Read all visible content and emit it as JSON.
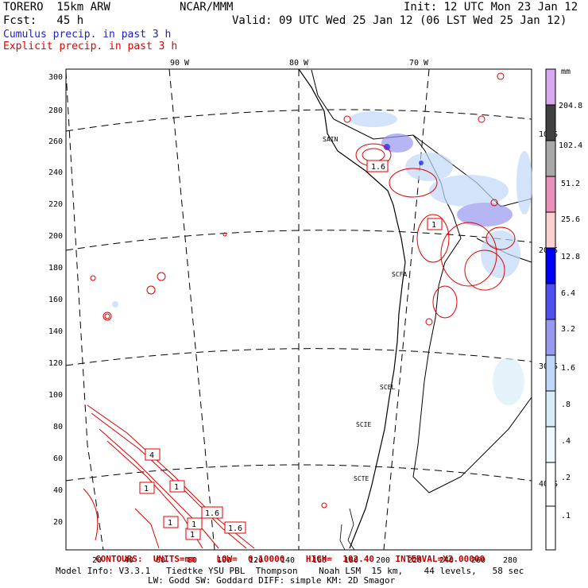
{
  "header": {
    "model": "TORERO  15km ARW",
    "center": "NCAR/MMM",
    "init": "Init: 12 UTC Mon 23 Jan 12",
    "fcst": "Fcst:   45 h",
    "valid": "Valid: 09 UTC Wed 25 Jan 12 (06 LST Wed 25 Jan 12)"
  },
  "fields": {
    "cumulus": "Cumulus precip. in past 3 h",
    "explicit": "Explicit precip. in past 3 h"
  },
  "axes": {
    "y_ticks": [
      "300",
      "280",
      "260",
      "240",
      "220",
      "200",
      "180",
      "160",
      "140",
      "120",
      "100",
      "80",
      "60",
      "40",
      "20"
    ],
    "x_ticks": [
      "20",
      "40",
      "60",
      "80",
      "100",
      "120",
      "140",
      "160",
      "180",
      "200",
      "220",
      "240",
      "260",
      "280"
    ],
    "lon_labels": [
      "90 W",
      "80 W",
      "70 W"
    ],
    "lat_labels": [
      "10 S",
      "20 S",
      "30 S",
      "40 S"
    ]
  },
  "stations": [
    "SAIN",
    "SCFA",
    "SCEL",
    "SCIE",
    "SCTE"
  ],
  "contour_labels": [
    "1.6",
    "1",
    "1",
    "1",
    "4",
    "1",
    "1",
    "1",
    "1.6",
    "1.6"
  ],
  "colorbar": {
    "unit": "mm",
    "labels": [
      "204.8",
      "102.4",
      "51.2",
      "25.6",
      "12.8",
      "6.4",
      "3.2",
      "1.6",
      ".8",
      ".4",
      ".2",
      ".1"
    ],
    "colors": [
      "#d8a8f0",
      "#404040",
      "#a8a8a8",
      "#e890b8",
      "#f8d0d0",
      "#0000f8",
      "#5050f0",
      "#9898f0",
      "#c0d8f8",
      "#d8ecf8",
      "#ecf8fc",
      "#ffffff",
      "#ffffff"
    ]
  },
  "footer": {
    "contours": "CONTOURS:  UNITS=mm    LOW=  0.10000    HIGH=  102.40    INTERVAL=X2.00000",
    "model_info": "Model Info: V3.3.1   Tiedtke YSU PBL  Thompson    Noah LSM  15 km,    44 levels,   58 sec",
    "model_info2": "LW: Godd SW: Goddard DIFF: simple KM: 2D Smagor"
  }
}
